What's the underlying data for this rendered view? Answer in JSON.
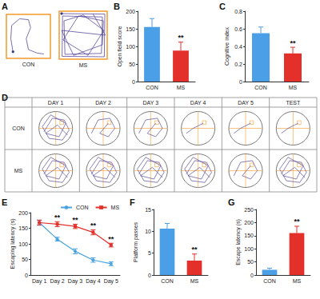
{
  "panel_A": {
    "panel_label": "A",
    "groups": [
      "CON",
      "MS"
    ]
  },
  "panel_D": {
    "panel_label": "D",
    "columns": [
      "DAY 1",
      "DAY 2",
      "DAY 3",
      "DAY 4",
      "DAY 5",
      "TEST"
    ],
    "rows": [
      "CON",
      "MS"
    ]
  },
  "chart_data": [
    {
      "panel_label": "B",
      "type": "bar",
      "categories": [
        "CON",
        "MS"
      ],
      "values": [
        155,
        88
      ],
      "errors": [
        24,
        24
      ],
      "colors": [
        "#4a9fe6",
        "#e3302b"
      ],
      "y_label": "Open field score",
      "ylim": [
        0,
        200
      ],
      "yticks": [
        0,
        50,
        100,
        150,
        200
      ],
      "grid": false,
      "annotations": [
        {
          "category": "MS",
          "text": "**"
        }
      ]
    },
    {
      "panel_label": "C",
      "type": "bar",
      "categories": [
        "CON",
        "MS"
      ],
      "values": [
        0.55,
        0.32
      ],
      "errors": [
        0.07,
        0.07
      ],
      "colors": [
        "#4a9fe6",
        "#e3302b"
      ],
      "y_label": "Cognitive index",
      "ylim": [
        0,
        0.8
      ],
      "yticks": [
        0,
        0.2,
        0.4,
        0.6,
        0.8
      ],
      "grid": false,
      "annotations": [
        {
          "category": "MS",
          "text": "**"
        }
      ]
    },
    {
      "panel_label": "E",
      "type": "line",
      "categories": [
        "Day 1",
        "Day 2",
        "Day 3",
        "Day 4",
        "Day 5"
      ],
      "series": [
        {
          "name": "CON",
          "color": "#4aa3df",
          "marker": "circle",
          "values": [
            168,
            115,
            76,
            48,
            36
          ],
          "errors": [
            8,
            6,
            8,
            7,
            6
          ]
        },
        {
          "name": "MS",
          "color": "#e3302b",
          "marker": "square",
          "values": [
            168,
            163,
            156,
            137,
            96
          ],
          "errors": [
            8,
            8,
            7,
            8,
            6
          ]
        }
      ],
      "y_label": "Escaping latency (s)",
      "ylim": [
        0,
        200
      ],
      "yticks": [
        0,
        50,
        100,
        150,
        200
      ],
      "grid": false,
      "legend": "top",
      "annotations": [
        {
          "category": "Day 2",
          "text": "**"
        },
        {
          "category": "Day 3",
          "text": "**"
        },
        {
          "category": "Day 4",
          "text": "**"
        },
        {
          "category": "Day 5",
          "text": "**"
        }
      ]
    },
    {
      "panel_label": "F",
      "type": "bar",
      "categories": [
        "CON",
        "MS"
      ],
      "values": [
        10.6,
        3.3
      ],
      "errors": [
        1.2,
        1.5
      ],
      "colors": [
        "#4a9fe6",
        "#e3302b"
      ],
      "y_label": "Platform passes",
      "ylim": [
        0,
        15
      ],
      "yticks": [
        0,
        5,
        10,
        15
      ],
      "grid": false,
      "annotations": [
        {
          "category": "MS",
          "text": "**"
        }
      ]
    },
    {
      "panel_label": "G",
      "type": "bar",
      "categories": [
        "CON",
        "MS"
      ],
      "values": [
        20,
        160
      ],
      "errors": [
        6,
        26
      ],
      "colors": [
        "#4a9fe6",
        "#e3302b"
      ],
      "y_label": "Escape latency (s)",
      "ylim": [
        0,
        250
      ],
      "yticks": [
        0,
        50,
        100,
        150,
        200,
        250
      ],
      "grid": false,
      "annotations": [
        {
          "category": "MS",
          "text": "**"
        }
      ]
    }
  ]
}
